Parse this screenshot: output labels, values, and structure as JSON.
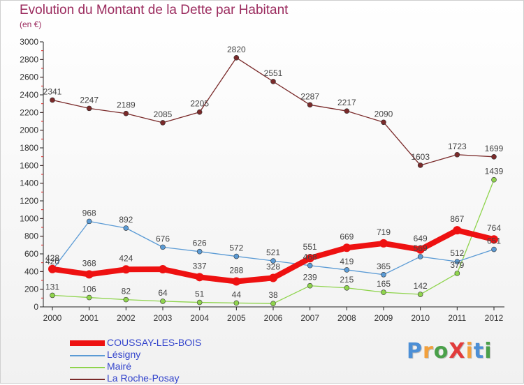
{
  "title": "Evolution du Montant de la Dette par Habitant",
  "subtitle": "(en €)",
  "brand": {
    "text": "ProXiti",
    "colors": [
      "#4c8fd6",
      "#f2a03c",
      "#4aa04a",
      "#e23c3c",
      "#f2a03c",
      "#4c8fd6",
      "#4aa04a"
    ]
  },
  "chart_data": {
    "type": "line",
    "title": "Evolution du Montant de la Dette par Habitant",
    "subtitle": "(en €)",
    "x": [
      "2000",
      "2001",
      "2002",
      "2003",
      "2004",
      "2005",
      "2006",
      "2007",
      "2008",
      "2009",
      "2010",
      "2011",
      "2012"
    ],
    "ylim": [
      0,
      3000
    ],
    "yticks": [
      0,
      200,
      400,
      600,
      800,
      1000,
      1200,
      1400,
      1600,
      1800,
      2000,
      2200,
      2400,
      2600,
      2800,
      3000
    ],
    "grid": false,
    "legend_position": "bottom-left",
    "series": [
      {
        "name": "COUSSAY-LES-BOIS",
        "color": "#ee1111",
        "values": [
          428,
          368,
          424,
          426,
          337,
          288,
          328,
          551,
          669,
          719,
          649,
          867,
          764
        ],
        "labels": [
          "428",
          "368",
          "424",
          "",
          "337",
          "288",
          "328",
          "551",
          "669",
          "719",
          "649",
          "867",
          "764"
        ]
      },
      {
        "name": "Lésigny",
        "color": "#5b9bd5",
        "values": [
          420,
          968,
          892,
          676,
          626,
          572,
          521,
          468,
          419,
          365,
          569,
          512,
          651
        ],
        "labels": [
          "420",
          "968",
          "892",
          "676",
          "626",
          "572",
          "521",
          "468",
          "419",
          "365",
          "569",
          "512",
          "651"
        ]
      },
      {
        "name": "Mairé",
        "color": "#8fd44d",
        "values": [
          131,
          106,
          82,
          64,
          51,
          44,
          38,
          239,
          215,
          165,
          142,
          379,
          1439
        ],
        "labels": [
          "131",
          "106",
          "82",
          "64",
          "51",
          "44",
          "38",
          "239",
          "215",
          "165",
          "142",
          "379",
          "1439"
        ]
      },
      {
        "name": "La Roche-Posay",
        "color": "#7a2a2a",
        "values": [
          2341,
          2247,
          2189,
          2085,
          2205,
          2820,
          2551,
          2287,
          2217,
          2090,
          1603,
          1723,
          1699
        ],
        "labels": [
          "2341",
          "2247",
          "2189",
          "2085",
          "2205",
          "2820",
          "2551",
          "2287",
          "2217",
          "2090",
          "1603",
          "1723",
          "1699"
        ]
      }
    ]
  }
}
